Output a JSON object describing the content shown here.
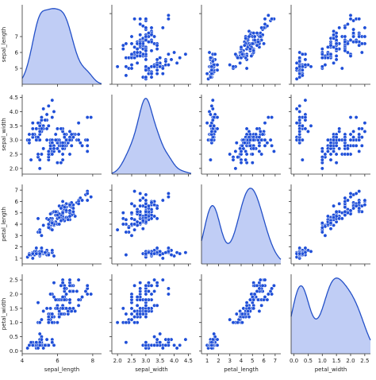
{
  "chart_data": {
    "type": "pairplot",
    "variables": [
      "sepal_length",
      "sepal_width",
      "petal_length",
      "petal_width"
    ],
    "diagonal": "kde",
    "offdiagonal": "scatter",
    "colors": {
      "point": "#1f4fd8",
      "point_edge": "#ffffff",
      "kde_line": "#2350c8",
      "kde_fill": "#b9c8f4"
    },
    "axes": {
      "sepal_length": {
        "range": [
          4.0,
          8.5
        ],
        "ticks": [
          4,
          6,
          8
        ]
      },
      "sepal_width": {
        "range": [
          1.8,
          4.6
        ],
        "ticks": [
          2.0,
          2.5,
          3.0,
          3.5,
          4.0,
          4.5
        ]
      },
      "petal_length": {
        "range": [
          0.5,
          7.5
        ],
        "ticks": [
          1,
          2,
          3,
          4,
          5,
          6,
          7
        ]
      },
      "petal_width": {
        "range": [
          -0.1,
          2.7
        ],
        "ticks": [
          0.0,
          0.5,
          1.0,
          1.5,
          2.0,
          2.5
        ]
      }
    },
    "points": [
      [
        5.1,
        3.5,
        1.4,
        0.2
      ],
      [
        4.9,
        3.0,
        1.4,
        0.2
      ],
      [
        4.7,
        3.2,
        1.3,
        0.2
      ],
      [
        4.6,
        3.1,
        1.5,
        0.2
      ],
      [
        5.0,
        3.6,
        1.4,
        0.2
      ],
      [
        5.4,
        3.9,
        1.7,
        0.4
      ],
      [
        4.6,
        3.4,
        1.4,
        0.3
      ],
      [
        5.0,
        3.4,
        1.5,
        0.2
      ],
      [
        4.4,
        2.9,
        1.4,
        0.2
      ],
      [
        4.9,
        3.1,
        1.5,
        0.1
      ],
      [
        5.4,
        3.7,
        1.5,
        0.2
      ],
      [
        4.8,
        3.4,
        1.6,
        0.2
      ],
      [
        4.8,
        3.0,
        1.4,
        0.1
      ],
      [
        4.3,
        3.0,
        1.1,
        0.1
      ],
      [
        5.8,
        4.0,
        1.2,
        0.2
      ],
      [
        5.7,
        4.4,
        1.5,
        0.4
      ],
      [
        5.4,
        3.9,
        1.3,
        0.4
      ],
      [
        5.1,
        3.5,
        1.4,
        0.3
      ],
      [
        5.7,
        3.8,
        1.7,
        0.3
      ],
      [
        5.1,
        3.8,
        1.5,
        0.3
      ],
      [
        5.4,
        3.4,
        1.7,
        0.2
      ],
      [
        5.1,
        3.7,
        1.5,
        0.4
      ],
      [
        4.6,
        3.6,
        1.0,
        0.2
      ],
      [
        5.1,
        3.3,
        1.7,
        0.5
      ],
      [
        4.8,
        3.4,
        1.9,
        0.2
      ],
      [
        5.0,
        3.0,
        1.6,
        0.2
      ],
      [
        5.0,
        3.4,
        1.6,
        0.4
      ],
      [
        5.2,
        3.5,
        1.5,
        0.2
      ],
      [
        5.2,
        3.4,
        1.4,
        0.2
      ],
      [
        4.7,
        3.2,
        1.6,
        0.2
      ],
      [
        4.8,
        3.1,
        1.6,
        0.2
      ],
      [
        5.4,
        3.4,
        1.5,
        0.4
      ],
      [
        5.2,
        4.1,
        1.5,
        0.1
      ],
      [
        5.5,
        4.2,
        1.4,
        0.2
      ],
      [
        4.9,
        3.1,
        1.5,
        0.2
      ],
      [
        5.0,
        3.2,
        1.2,
        0.2
      ],
      [
        5.5,
        3.5,
        1.3,
        0.2
      ],
      [
        4.9,
        3.6,
        1.4,
        0.1
      ],
      [
        4.4,
        3.0,
        1.3,
        0.2
      ],
      [
        5.1,
        3.4,
        1.5,
        0.2
      ],
      [
        5.0,
        3.5,
        1.3,
        0.3
      ],
      [
        4.5,
        2.3,
        1.3,
        0.3
      ],
      [
        4.4,
        3.2,
        1.3,
        0.2
      ],
      [
        5.0,
        3.5,
        1.6,
        0.6
      ],
      [
        5.1,
        3.8,
        1.9,
        0.4
      ],
      [
        4.8,
        3.0,
        1.4,
        0.3
      ],
      [
        5.1,
        3.8,
        1.6,
        0.2
      ],
      [
        4.6,
        3.2,
        1.4,
        0.2
      ],
      [
        5.3,
        3.7,
        1.5,
        0.2
      ],
      [
        5.0,
        3.3,
        1.4,
        0.2
      ],
      [
        7.0,
        3.2,
        4.7,
        1.4
      ],
      [
        6.4,
        3.2,
        4.5,
        1.5
      ],
      [
        6.9,
        3.1,
        4.9,
        1.5
      ],
      [
        5.5,
        2.3,
        4.0,
        1.3
      ],
      [
        6.5,
        2.8,
        4.6,
        1.5
      ],
      [
        5.7,
        2.8,
        4.5,
        1.3
      ],
      [
        6.3,
        3.3,
        4.7,
        1.6
      ],
      [
        4.9,
        2.4,
        3.3,
        1.0
      ],
      [
        6.6,
        2.9,
        4.6,
        1.3
      ],
      [
        5.2,
        2.7,
        3.9,
        1.4
      ],
      [
        5.0,
        2.0,
        3.5,
        1.0
      ],
      [
        5.9,
        3.0,
        4.2,
        1.5
      ],
      [
        6.0,
        2.2,
        4.0,
        1.0
      ],
      [
        6.1,
        2.9,
        4.7,
        1.4
      ],
      [
        5.6,
        2.9,
        3.6,
        1.3
      ],
      [
        6.7,
        3.1,
        4.4,
        1.4
      ],
      [
        5.6,
        3.0,
        4.5,
        1.5
      ],
      [
        5.8,
        2.7,
        4.1,
        1.0
      ],
      [
        6.2,
        2.2,
        4.5,
        1.5
      ],
      [
        5.6,
        2.5,
        3.9,
        1.1
      ],
      [
        5.9,
        3.2,
        4.8,
        1.8
      ],
      [
        6.1,
        2.8,
        4.0,
        1.3
      ],
      [
        6.3,
        2.5,
        4.9,
        1.5
      ],
      [
        6.1,
        2.8,
        4.7,
        1.2
      ],
      [
        6.4,
        2.9,
        4.3,
        1.3
      ],
      [
        6.6,
        3.0,
        4.4,
        1.4
      ],
      [
        6.8,
        2.8,
        4.8,
        1.4
      ],
      [
        6.7,
        3.0,
        5.0,
        1.7
      ],
      [
        6.0,
        2.9,
        4.5,
        1.5
      ],
      [
        5.7,
        2.6,
        3.5,
        1.0
      ],
      [
        5.5,
        2.4,
        3.8,
        1.1
      ],
      [
        5.5,
        2.4,
        3.7,
        1.0
      ],
      [
        5.8,
        2.7,
        3.9,
        1.2
      ],
      [
        6.0,
        2.7,
        5.1,
        1.6
      ],
      [
        5.4,
        3.0,
        4.5,
        1.5
      ],
      [
        6.0,
        3.4,
        4.5,
        1.6
      ],
      [
        6.7,
        3.1,
        4.7,
        1.5
      ],
      [
        6.3,
        2.3,
        4.4,
        1.3
      ],
      [
        5.6,
        3.0,
        4.1,
        1.3
      ],
      [
        5.5,
        2.5,
        4.0,
        1.3
      ],
      [
        5.5,
        2.6,
        4.4,
        1.2
      ],
      [
        6.1,
        3.0,
        4.6,
        1.4
      ],
      [
        5.8,
        2.6,
        4.0,
        1.2
      ],
      [
        5.0,
        2.3,
        3.3,
        1.0
      ],
      [
        5.6,
        2.7,
        4.2,
        1.3
      ],
      [
        5.7,
        3.0,
        4.2,
        1.2
      ],
      [
        5.7,
        2.9,
        4.2,
        1.3
      ],
      [
        6.2,
        2.9,
        4.3,
        1.3
      ],
      [
        5.1,
        2.5,
        3.0,
        1.1
      ],
      [
        5.7,
        2.8,
        4.1,
        1.3
      ],
      [
        6.3,
        3.3,
        6.0,
        2.5
      ],
      [
        5.8,
        2.7,
        5.1,
        1.9
      ],
      [
        7.1,
        3.0,
        5.9,
        2.1
      ],
      [
        6.3,
        2.9,
        5.6,
        1.8
      ],
      [
        6.5,
        3.0,
        5.8,
        2.2
      ],
      [
        7.6,
        3.0,
        6.6,
        2.1
      ],
      [
        4.9,
        2.5,
        4.5,
        1.7
      ],
      [
        7.3,
        2.9,
        6.3,
        1.8
      ],
      [
        6.7,
        2.5,
        5.8,
        1.8
      ],
      [
        7.2,
        3.6,
        6.1,
        2.5
      ],
      [
        6.5,
        3.2,
        5.1,
        2.0
      ],
      [
        6.4,
        2.7,
        5.3,
        1.9
      ],
      [
        6.8,
        3.0,
        5.5,
        2.1
      ],
      [
        5.7,
        2.5,
        5.0,
        2.0
      ],
      [
        5.8,
        2.8,
        5.1,
        2.4
      ],
      [
        6.4,
        3.2,
        5.3,
        2.3
      ],
      [
        6.5,
        3.0,
        5.5,
        1.8
      ],
      [
        7.7,
        3.8,
        6.7,
        2.2
      ],
      [
        7.7,
        2.6,
        6.9,
        2.3
      ],
      [
        6.0,
        2.2,
        5.0,
        1.5
      ],
      [
        6.9,
        3.2,
        5.7,
        2.3
      ],
      [
        5.6,
        2.8,
        4.9,
        2.0
      ],
      [
        7.7,
        2.8,
        6.7,
        2.0
      ],
      [
        6.3,
        2.7,
        4.9,
        1.8
      ],
      [
        6.7,
        3.3,
        5.7,
        2.1
      ],
      [
        7.2,
        3.2,
        6.0,
        1.8
      ],
      [
        6.2,
        2.8,
        4.8,
        1.8
      ],
      [
        6.1,
        3.0,
        4.9,
        1.8
      ],
      [
        6.4,
        2.8,
        5.6,
        2.1
      ],
      [
        7.2,
        3.0,
        5.8,
        1.6
      ],
      [
        7.4,
        2.8,
        6.1,
        1.9
      ],
      [
        7.9,
        3.8,
        6.4,
        2.0
      ],
      [
        6.4,
        2.8,
        5.6,
        2.2
      ],
      [
        6.3,
        2.8,
        5.1,
        1.5
      ],
      [
        6.1,
        2.6,
        5.6,
        1.4
      ],
      [
        7.7,
        3.0,
        6.1,
        2.3
      ],
      [
        6.3,
        3.4,
        5.6,
        2.4
      ],
      [
        6.4,
        3.1,
        5.5,
        1.8
      ],
      [
        6.0,
        3.0,
        4.8,
        1.8
      ],
      [
        6.9,
        3.1,
        5.4,
        2.1
      ],
      [
        6.7,
        3.1,
        5.6,
        2.4
      ],
      [
        6.9,
        3.1,
        5.1,
        2.3
      ],
      [
        5.8,
        2.7,
        5.1,
        1.9
      ],
      [
        6.8,
        3.2,
        5.9,
        2.3
      ],
      [
        6.7,
        3.3,
        5.7,
        2.5
      ],
      [
        6.7,
        3.0,
        5.2,
        2.3
      ],
      [
        6.3,
        2.5,
        5.0,
        1.9
      ],
      [
        6.5,
        3.0,
        5.2,
        2.0
      ],
      [
        6.2,
        3.4,
        5.4,
        2.3
      ],
      [
        5.9,
        3.0,
        5.1,
        1.8
      ]
    ]
  }
}
